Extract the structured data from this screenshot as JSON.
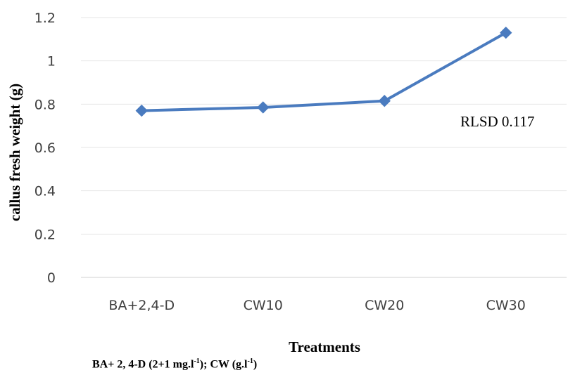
{
  "chart_data": {
    "type": "line",
    "categories": [
      "BA+2,4-D",
      "CW10",
      "CW20",
      "CW30"
    ],
    "series": [
      {
        "values": [
          0.77,
          0.785,
          0.815,
          1.13
        ],
        "color": "#4a7bbf"
      }
    ],
    "xlabel": "Treatments",
    "ylabel": "callus fresh weight (g)",
    "ylim": [
      0,
      1.2
    ],
    "yticks": [
      "0",
      "0.2",
      "0.4",
      "0.6",
      "0.8",
      "1",
      "1.2"
    ],
    "grid": true,
    "annotation": "RLSD 0.117",
    "footnote": {
      "p1": "BA+ 2, 4-D (2+1 mg.l",
      "s1": "-1",
      "p2": "); CW (g.l",
      "s2": "-1",
      "p3": ")"
    }
  }
}
